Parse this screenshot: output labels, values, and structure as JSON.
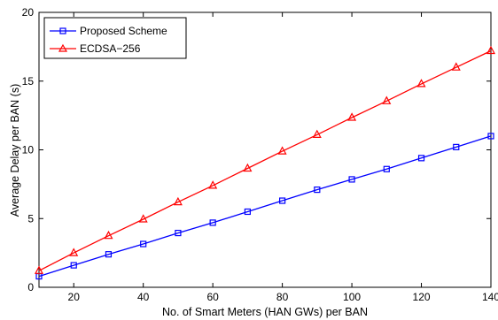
{
  "chart_data": {
    "type": "line",
    "xlabel": "No. of Smart Meters (HAN GWs) per BAN",
    "ylabel": "Average Delay per BAN (s)",
    "xlim": [
      10,
      140
    ],
    "ylim": [
      0,
      20
    ],
    "xticks": [
      20,
      40,
      60,
      80,
      100,
      120,
      140
    ],
    "yticks": [
      0,
      5,
      10,
      15,
      20
    ],
    "grid": false,
    "legend_position": "top-left",
    "x": [
      10,
      20,
      30,
      40,
      50,
      60,
      70,
      80,
      90,
      100,
      110,
      120,
      130,
      140
    ],
    "series": [
      {
        "name": "Proposed Scheme",
        "color": "#0000ff",
        "marker": "square",
        "values": [
          0.8,
          1.6,
          2.4,
          3.15,
          3.95,
          4.7,
          5.5,
          6.3,
          7.1,
          7.85,
          8.6,
          9.4,
          10.2,
          11.0
        ]
      },
      {
        "name": "ECDSA−256",
        "color": "#ff0000",
        "marker": "triangle",
        "values": [
          1.2,
          2.5,
          3.75,
          4.95,
          6.2,
          7.4,
          8.65,
          9.9,
          11.1,
          12.35,
          13.55,
          14.8,
          16.0,
          17.2
        ]
      }
    ]
  }
}
